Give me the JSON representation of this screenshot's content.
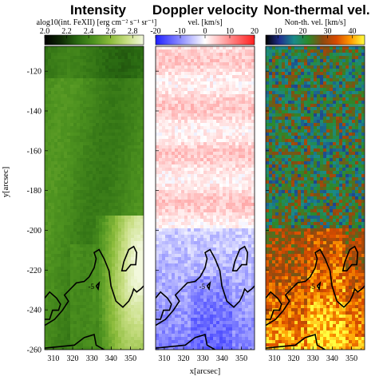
{
  "chart_data": [
    {
      "type": "heatmap",
      "title": "Intensity",
      "colorbar_label": "alog10(int. FeXII) [erg cm⁻² s⁻¹ sr⁻¹]",
      "colorbar_range": [
        2.0,
        2.9
      ],
      "colorbar_ticks": [
        "2.0",
        "2.2",
        "2.4",
        "2.6",
        "2.8"
      ],
      "colormap": [
        "#000000",
        "#0f2a05",
        "#2a6a12",
        "#4f9420",
        "#8cbc3c",
        "#c8de84",
        "#f2f8dc"
      ],
      "ylabel": "y[arcsec]",
      "yticks": [
        "-120",
        "-140",
        "-160",
        "-180",
        "-200",
        "-220",
        "-240",
        "-260"
      ],
      "xticks": [
        "310",
        "320",
        "330",
        "340",
        "350"
      ],
      "contour_label": "-5"
    },
    {
      "type": "heatmap",
      "title": "Doppler velocity",
      "colorbar_label": "vel. [km/s]",
      "colorbar_range": [
        -20,
        20
      ],
      "colorbar_ticks": [
        "-20",
        "-10",
        "0",
        "10",
        "20"
      ],
      "colormap": [
        "#2020ff",
        "#8c8cff",
        "#ffffff",
        "#ff8c8c",
        "#ff2020"
      ],
      "xticks": [
        "310",
        "320",
        "330",
        "340",
        "350"
      ],
      "xlabel": "x[arcsec]",
      "contour_label": "-5"
    },
    {
      "type": "heatmap",
      "title": "Non-thermal vel.",
      "colorbar_label": "Non-th. vel. [km/s]",
      "colorbar_range": [
        5,
        45
      ],
      "colorbar_ticks": [
        "10",
        "20",
        "30",
        "40"
      ],
      "colormap": [
        "#000000",
        "#203090",
        "#1a8a8a",
        "#2a8a2a",
        "#8a4a10",
        "#d84a00",
        "#ff9a00",
        "#ffff40"
      ],
      "xticks": [
        "310",
        "320",
        "330",
        "340",
        "350"
      ],
      "contour_label": "-5"
    }
  ]
}
